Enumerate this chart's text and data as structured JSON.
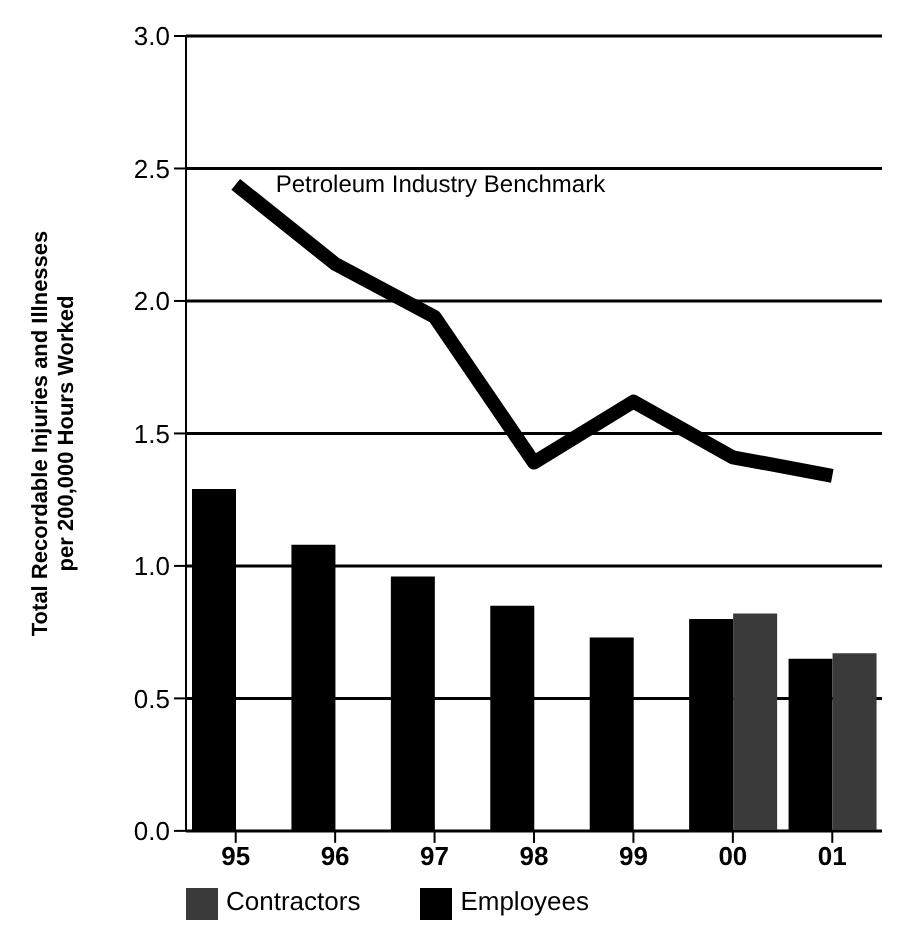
{
  "chart_data": {
    "type": "bar",
    "ylabel": "Total Recordable Injuries and Illnesses per 200,000 Hours Worked",
    "categories": [
      "95",
      "96",
      "97",
      "98",
      "99",
      "00",
      "01"
    ],
    "series": [
      {
        "name": "Employees",
        "color": "#000000",
        "values": [
          1.29,
          1.08,
          0.96,
          0.85,
          0.73,
          0.8,
          0.65
        ]
      },
      {
        "name": "Contractors",
        "color": "#3a3a3a",
        "values": [
          null,
          null,
          null,
          null,
          null,
          0.82,
          0.67
        ]
      },
      {
        "name": "Petroleum Industry Benchmark",
        "type": "line",
        "color": "#000000",
        "values": [
          2.44,
          2.14,
          1.94,
          1.39,
          1.62,
          1.41,
          1.34
        ]
      }
    ],
    "ylim": [
      0,
      3.0
    ],
    "yticks": [
      {
        "value": 0,
        "label": "0.0"
      },
      0.5,
      {
        "value": 1,
        "label": "1.0"
      },
      1.5,
      {
        "value": 2,
        "label": "2.0"
      },
      2.5,
      {
        "value": 3,
        "label": "3.0"
      }
    ],
    "grid": "y",
    "legend": "bottom",
    "marker": "none",
    "line_style": "solid"
  }
}
